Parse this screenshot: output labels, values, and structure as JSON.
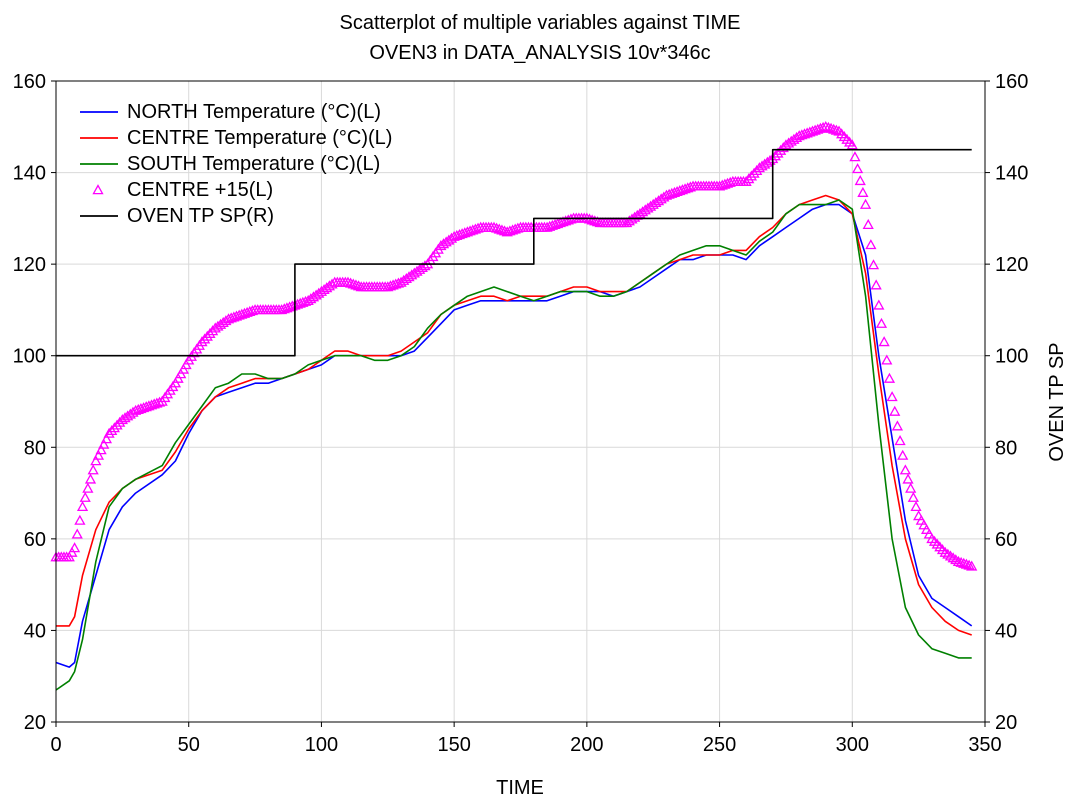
{
  "chart_data": {
    "type": "line",
    "title": "Scatterplot of multiple variables against TIME",
    "subtitle": "OVEN3 in DATA_ANALYSIS 10v*346c",
    "xlabel": "TIME",
    "ylabel_left": "",
    "ylabel_right": "OVEN TP SP",
    "xlim": [
      0,
      350
    ],
    "ylim_left": [
      20,
      160
    ],
    "ylim_right": [
      20,
      160
    ],
    "x_ticks": [
      "0",
      "50",
      "100",
      "150",
      "200",
      "250",
      "300",
      "350"
    ],
    "y_ticks_left": [
      "20",
      "40",
      "60",
      "80",
      "100",
      "120",
      "140",
      "160"
    ],
    "y_ticks_right": [
      "20",
      "40",
      "60",
      "80",
      "100",
      "120",
      "140",
      "160"
    ],
    "grid": true,
    "legend_position": "top-left",
    "series": [
      {
        "name": "NORTH Temperature (°C)(L)",
        "style": "line",
        "color": "#0000ff",
        "axis": "left",
        "x": [
          0,
          5,
          7,
          10,
          15,
          20,
          25,
          30,
          40,
          45,
          50,
          55,
          60,
          65,
          70,
          75,
          80,
          85,
          90,
          95,
          100,
          105,
          110,
          115,
          120,
          125,
          130,
          135,
          140,
          145,
          150,
          155,
          160,
          165,
          170,
          175,
          180,
          185,
          190,
          195,
          200,
          205,
          210,
          215,
          220,
          225,
          230,
          235,
          240,
          245,
          250,
          255,
          260,
          265,
          270,
          275,
          280,
          285,
          290,
          295,
          300,
          305,
          310,
          315,
          320,
          325,
          330,
          335,
          340,
          345
        ],
        "y": [
          33,
          32,
          33,
          42,
          52,
          62,
          67,
          70,
          74,
          77,
          83,
          88,
          91,
          92,
          93,
          94,
          94,
          95,
          96,
          97,
          98,
          100,
          100,
          100,
          100,
          100,
          100,
          101,
          104,
          107,
          110,
          111,
          112,
          112,
          112,
          112,
          112,
          112,
          113,
          114,
          114,
          114,
          113,
          114,
          115,
          117,
          119,
          121,
          121,
          122,
          122,
          122,
          121,
          124,
          126,
          128,
          130,
          132,
          133,
          133,
          131,
          122,
          100,
          82,
          64,
          52,
          47,
          45,
          43,
          41
        ]
      },
      {
        "name": "CENTRE Temperature (°C)(L)",
        "style": "line",
        "color": "#ff0000",
        "axis": "left",
        "x": [
          0,
          5,
          7,
          10,
          15,
          20,
          25,
          30,
          40,
          45,
          50,
          55,
          60,
          65,
          70,
          75,
          80,
          85,
          90,
          95,
          100,
          105,
          110,
          115,
          120,
          125,
          130,
          135,
          140,
          145,
          150,
          155,
          160,
          165,
          170,
          175,
          180,
          185,
          190,
          195,
          200,
          205,
          210,
          215,
          220,
          225,
          230,
          235,
          240,
          245,
          250,
          255,
          260,
          265,
          270,
          275,
          280,
          285,
          290,
          295,
          300,
          305,
          310,
          315,
          320,
          325,
          330,
          335,
          340,
          345
        ],
        "y": [
          41,
          41,
          43,
          52,
          62,
          68,
          71,
          73,
          75,
          79,
          84,
          88,
          91,
          93,
          94,
          95,
          95,
          95,
          96,
          97,
          99,
          101,
          101,
          100,
          100,
          100,
          101,
          103,
          105,
          109,
          111,
          112,
          113,
          113,
          112,
          113,
          113,
          113,
          114,
          115,
          115,
          114,
          114,
          114,
          116,
          118,
          120,
          121,
          122,
          122,
          122,
          123,
          123,
          126,
          128,
          131,
          133,
          134,
          135,
          134,
          131,
          118,
          96,
          76,
          60,
          50,
          45,
          42,
          40,
          39
        ]
      },
      {
        "name": "SOUTH Temperature (°C)(L)",
        "style": "line",
        "color": "#008000",
        "axis": "left",
        "x": [
          0,
          5,
          7,
          10,
          15,
          20,
          25,
          30,
          40,
          45,
          50,
          55,
          60,
          65,
          70,
          75,
          80,
          85,
          90,
          95,
          100,
          105,
          110,
          115,
          120,
          125,
          130,
          135,
          140,
          145,
          150,
          155,
          160,
          165,
          170,
          175,
          180,
          185,
          190,
          195,
          200,
          205,
          210,
          215,
          220,
          225,
          230,
          235,
          240,
          245,
          250,
          255,
          260,
          265,
          270,
          275,
          280,
          285,
          290,
          295,
          300,
          305,
          310,
          315,
          320,
          325,
          330,
          335,
          340,
          345
        ],
        "y": [
          27,
          29,
          31,
          38,
          55,
          67,
          71,
          73,
          76,
          81,
          85,
          89,
          93,
          94,
          96,
          96,
          95,
          95,
          96,
          98,
          99,
          100,
          100,
          100,
          99,
          99,
          100,
          102,
          106,
          109,
          111,
          113,
          114,
          115,
          114,
          113,
          112,
          113,
          114,
          114,
          114,
          113,
          113,
          114,
          116,
          118,
          120,
          122,
          123,
          124,
          124,
          123,
          122,
          125,
          127,
          131,
          133,
          133,
          133,
          134,
          132,
          113,
          85,
          60,
          45,
          39,
          36,
          35,
          34,
          34
        ]
      },
      {
        "name": "CENTRE +15(L)",
        "style": "markers",
        "marker": "triangle",
        "color": "#ff00ff",
        "axis": "left",
        "x": [
          0,
          5,
          7,
          10,
          15,
          20,
          25,
          30,
          40,
          45,
          50,
          55,
          60,
          65,
          70,
          75,
          80,
          85,
          90,
          95,
          100,
          105,
          110,
          115,
          120,
          125,
          130,
          135,
          140,
          145,
          150,
          155,
          160,
          165,
          170,
          175,
          180,
          185,
          190,
          195,
          200,
          205,
          210,
          215,
          220,
          225,
          230,
          235,
          240,
          245,
          250,
          255,
          260,
          265,
          270,
          275,
          280,
          285,
          290,
          295,
          300,
          305,
          310,
          315,
          320,
          325,
          330,
          335,
          340,
          345
        ],
        "y": [
          56,
          56,
          58,
          67,
          77,
          83,
          86,
          88,
          90,
          94,
          99,
          103,
          106,
          108,
          109,
          110,
          110,
          110,
          111,
          112,
          114,
          116,
          116,
          115,
          115,
          115,
          116,
          118,
          120,
          124,
          126,
          127,
          128,
          128,
          127,
          128,
          128,
          128,
          129,
          130,
          130,
          129,
          129,
          129,
          131,
          133,
          135,
          136,
          137,
          137,
          137,
          138,
          138,
          141,
          143,
          146,
          148,
          149,
          150,
          149,
          146,
          133,
          111,
          91,
          75,
          65,
          60,
          57,
          55,
          54
        ]
      },
      {
        "name": "OVEN TP SP(R)",
        "style": "step",
        "color": "#000000",
        "axis": "right",
        "x": [
          0,
          90,
          90,
          180,
          180,
          270,
          270,
          345
        ],
        "y": [
          100,
          100,
          120,
          120,
          130,
          130,
          145,
          145
        ]
      }
    ]
  }
}
